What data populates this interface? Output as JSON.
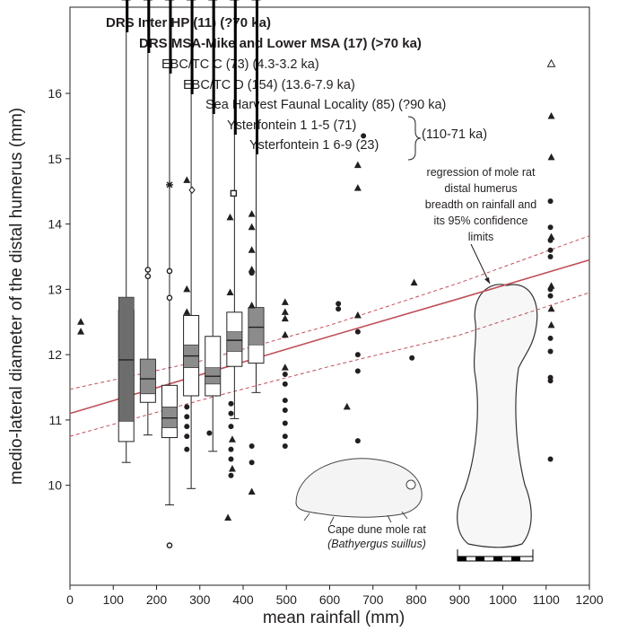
{
  "chart_data": {
    "type": "box",
    "xlabel": "mean rainfall (mm)",
    "ylabel": "medio-lateral diameter of the distal humerus (mm)",
    "xlim": [
      0,
      1200
    ],
    "ylim": [
      8.47,
      17.32
    ],
    "xticks": [
      0,
      100,
      200,
      300,
      400,
      500,
      600,
      700,
      800,
      900,
      1000,
      1100,
      1200
    ],
    "yticks": [
      10,
      11,
      12,
      13,
      14,
      15,
      16
    ],
    "box_color": "#ffffff",
    "notch_color": "#8c8c8c",
    "notch_color_dark": "#6d6d6d",
    "boxes": [
      {
        "label": "DRS Inter HP (11) (?70 ka)",
        "x": 130,
        "whisker_low": 10.35,
        "q1": 10.67,
        "median": 11.92,
        "q3": 12.68,
        "notch_low": 10.98,
        "notch_high": 12.88
      },
      {
        "label": "DRS MSA-Mike and Lower MSA (17) (>70 ka)",
        "x": 180,
        "whisker_low": 10.77,
        "q1": 11.27,
        "median": 11.63,
        "q3": 11.93,
        "notch_low": 11.4,
        "notch_high": 11.93
      },
      {
        "label": "EBC/TC C (73) (4.3-3.2 ka)",
        "x": 230,
        "whisker_low": 9.7,
        "q1": 10.73,
        "median": 11.03,
        "q3": 11.53,
        "notch_low": 10.88,
        "notch_high": 11.2
      },
      {
        "label": "EBC/TC D (154) (13.6-7.9 ka)",
        "x": 280,
        "whisker_low": 9.95,
        "q1": 11.37,
        "median": 11.98,
        "q3": 12.6,
        "notch_low": 11.8,
        "notch_high": 12.15
      },
      {
        "label": "Sea Harvest Faunal Locality (85) (?90 ka)",
        "x": 330,
        "whisker_low": 10.52,
        "q1": 11.37,
        "median": 11.67,
        "q3": 12.28,
        "notch_low": 11.55,
        "notch_high": 11.8
      },
      {
        "label": "Ysterfontein 1 1-5 (71)",
        "x": 380,
        "whisker_low": 11.02,
        "q1": 11.82,
        "median": 12.22,
        "q3": 12.65,
        "notch_low": 12.05,
        "notch_high": 12.35
      },
      {
        "label": "Ysterfontein 1 6-9 (23)",
        "x": 430,
        "whisker_low": 11.42,
        "q1": 11.87,
        "median": 12.42,
        "q3": 12.72,
        "notch_low": 12.15,
        "notch_high": 12.72
      }
    ],
    "group_label": "(110-71 ka)",
    "points": [
      {
        "marker": "triangle",
        "color": "#231f20",
        "x": [
          25,
          25,
          270,
          270,
          270,
          370,
          370,
          420,
          420,
          420,
          420,
          420,
          497,
          497,
          497,
          497,
          497,
          375,
          375,
          420,
          365,
          640,
          665,
          665,
          665,
          795,
          1112,
          1112,
          1112,
          1112,
          1112,
          1112
        ],
        "y": [
          12.5,
          12.35,
          14.67,
          13.0,
          12.65,
          14.1,
          12.95,
          14.15,
          13.95,
          13.6,
          13.3,
          12.75,
          12.8,
          12.65,
          12.55,
          12.3,
          11.8,
          10.7,
          10.25,
          9.9,
          9.5,
          11.2,
          14.9,
          14.55,
          12.6,
          13.1,
          15.65,
          15.02,
          13.8,
          13.05,
          12.7,
          12.45
        ]
      },
      {
        "marker": "dot",
        "color": "#231f20",
        "x": [
          270,
          270,
          270,
          270,
          270,
          322,
          372,
          372,
          372,
          372,
          372,
          372,
          420,
          420,
          420,
          497,
          497,
          497,
          497,
          497,
          497,
          497,
          620,
          620,
          678,
          665,
          665,
          665,
          665,
          790,
          1110,
          1110,
          1110,
          1110,
          1110,
          1110,
          1110,
          1110,
          1110,
          1110,
          1110,
          1110
        ],
        "y": [
          11.2,
          11.05,
          10.9,
          10.75,
          10.55,
          10.8,
          11.25,
          11.1,
          10.9,
          10.55,
          10.4,
          10.15,
          13.25,
          10.6,
          10.35,
          11.7,
          11.55,
          11.3,
          11.15,
          10.95,
          10.75,
          10.6,
          12.78,
          12.7,
          15.35,
          12.35,
          12.0,
          11.75,
          10.68,
          11.95,
          14.35,
          13.95,
          13.75,
          13.6,
          13.5,
          13.0,
          12.9,
          12.25,
          12.05,
          11.65,
          11.6,
          10.4
        ]
      },
      {
        "marker": "open-circle",
        "color": "#231f20",
        "x": [
          180,
          180,
          230,
          230,
          230
        ],
        "y": [
          13.3,
          13.2,
          13.28,
          12.87,
          9.08
        ]
      },
      {
        "marker": "open-triangle",
        "color": "#231f20",
        "x": [
          1112
        ],
        "y": [
          16.45
        ]
      },
      {
        "marker": "star",
        "color": "#231f20",
        "x": [
          230
        ],
        "y": [
          14.6
        ]
      },
      {
        "marker": "diamond",
        "color": "#231f20",
        "x": [
          282
        ],
        "y": [
          14.52
        ]
      },
      {
        "marker": "square",
        "color": "#231f20",
        "x": [
          378
        ],
        "y": [
          14.47
        ]
      }
    ],
    "regression": {
      "color": "#c0505a",
      "x": [
        0,
        300,
        600,
        900,
        1200
      ],
      "fit": [
        11.1,
        11.69,
        12.28,
        12.86,
        13.45
      ],
      "ci_upper": [
        11.47,
        11.9,
        12.45,
        13.1,
        13.82
      ],
      "ci_lower": [
        10.75,
        11.3,
        11.82,
        12.3,
        12.95
      ],
      "note": [
        "regression of mole rat",
        "distal humerus",
        "breadth on rainfall and",
        "its 95% confidence",
        "limits"
      ]
    },
    "caption": "Cape dune mole rat",
    "caption_species": "(Bathyergus suillus)"
  }
}
